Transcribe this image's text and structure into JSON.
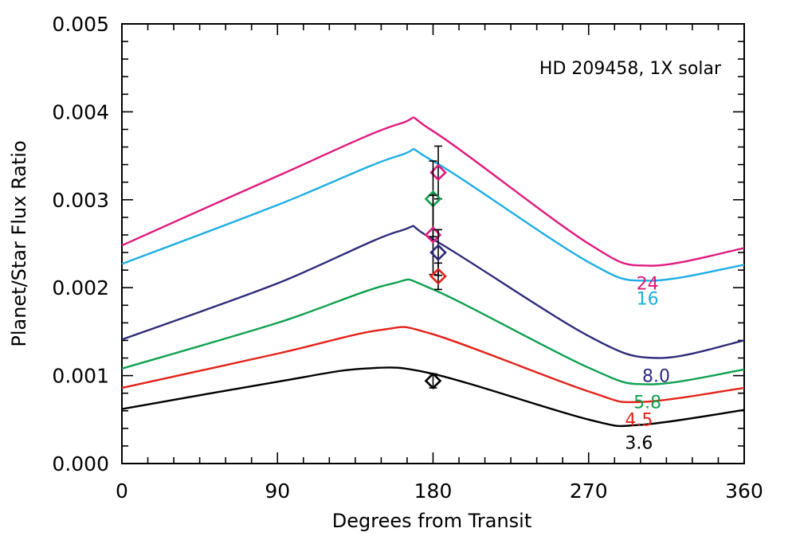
{
  "chart_data": {
    "type": "line",
    "annotation": "HD 209458, 1X solar",
    "xlabel": "Degrees from Transit",
    "ylabel": "Planet/Star Flux Ratio",
    "xlim": [
      0,
      360
    ],
    "ylim": [
      0,
      0.005
    ],
    "x_ticks": [
      "0",
      "90",
      "180",
      "270",
      "360"
    ],
    "y_ticks": [
      "0.000",
      "0.001",
      "0.002",
      "0.003",
      "0.004",
      "0.005"
    ],
    "grid": false,
    "series": [
      {
        "name": "24",
        "color": "#e0197d",
        "x": [
          0,
          90,
          160,
          180,
          270,
          305,
          360
        ],
        "y": [
          0.00248,
          0.00327,
          0.00386,
          0.00378,
          0.0025,
          0.00225,
          0.00245
        ]
      },
      {
        "name": "16",
        "color": "#1eaee3",
        "x": [
          0,
          90,
          160,
          180,
          270,
          305,
          360
        ],
        "y": [
          0.00227,
          0.00294,
          0.0035,
          0.00344,
          0.00229,
          0.00208,
          0.00226
        ]
      },
      {
        "name": "8.0",
        "color": "#2e2a7a",
        "x": [
          0,
          90,
          160,
          180,
          270,
          310,
          360
        ],
        "y": [
          0.00141,
          0.00205,
          0.00264,
          0.00255,
          0.00145,
          0.0012,
          0.0014
        ]
      },
      {
        "name": "5.8",
        "color": "#10a050",
        "x": [
          0,
          90,
          155,
          180,
          270,
          305,
          360
        ],
        "y": [
          0.00108,
          0.0016,
          0.00204,
          0.00198,
          0.00109,
          0.0009,
          0.00107
        ]
      },
      {
        "name": "4.5",
        "color": "#e2231a",
        "x": [
          0,
          90,
          150,
          180,
          270,
          300,
          360
        ],
        "y": [
          0.00086,
          0.00125,
          0.00152,
          0.00147,
          0.00082,
          0.0007,
          0.00086
        ]
      },
      {
        "name": "3.6",
        "color": "#000000",
        "x": [
          0,
          90,
          140,
          180,
          270,
          300,
          360
        ],
        "y": [
          0.00062,
          0.00093,
          0.00108,
          0.00102,
          0.0005,
          0.00044,
          0.00061
        ]
      }
    ],
    "observations": [
      {
        "band": "24",
        "color": "#e0197d",
        "x": 183,
        "y": 0.00331,
        "yerr": 0.0003
      },
      {
        "band": "5.8",
        "color": "#10a050",
        "x": 180,
        "y": 0.00301,
        "yerr": 0.00043
      },
      {
        "band": "16",
        "color": "#e0197d",
        "x": 180,
        "y": 0.0026,
        "yerr": 0.00045
      },
      {
        "band": "8.0",
        "color": "#2e2a7a",
        "x": 183,
        "y": 0.0024,
        "yerr": 0.00026
      },
      {
        "band": "4.5",
        "color": "#e2231a",
        "x": 183,
        "y": 0.00213,
        "yerr": 0.00015
      },
      {
        "band": "3.6",
        "color": "#000000",
        "x": 180,
        "y": 0.00094,
        "yerr": 8e-05
      }
    ]
  }
}
